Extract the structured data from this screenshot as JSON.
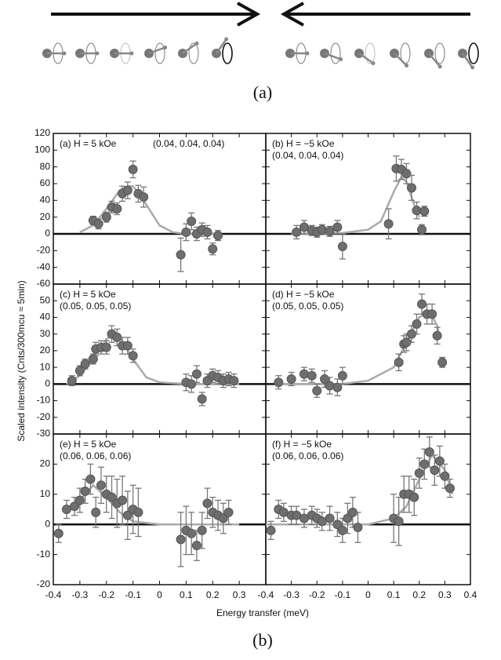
{
  "figure": {
    "caption_a": "(a)",
    "caption_b": "(b)",
    "xlabel": "Energy transfer (meV)",
    "ylabel": "Scaled intensity (Cnts/300mcu ≈ 5min)"
  },
  "chart_data": [
    {
      "type": "scatter",
      "label": "(a) H = 5 kOe",
      "subtitle": "(0.04, 0.04, 0.04)",
      "x": [
        -0.25,
        -0.23,
        -0.2,
        -0.18,
        -0.16,
        -0.14,
        -0.12,
        -0.1,
        -0.08,
        -0.06,
        0.08,
        0.1,
        0.12,
        0.14,
        0.16,
        0.18,
        0.2,
        0.22
      ],
      "values": [
        16,
        12,
        20,
        32,
        30,
        48,
        52,
        77,
        48,
        44,
        -25,
        2,
        15,
        0,
        5,
        2,
        -18,
        -2
      ],
      "errors": [
        5,
        6,
        6,
        7,
        7,
        9,
        10,
        10,
        10,
        12,
        20,
        10,
        10,
        8,
        8,
        8,
        7,
        6
      ],
      "fit": {
        "x": [
          -0.3,
          -0.25,
          -0.2,
          -0.15,
          -0.12,
          -0.1,
          -0.07,
          -0.05,
          0,
          0.05,
          0.1,
          0.15,
          0.2,
          0.22
        ],
        "values": [
          2,
          10,
          30,
          52,
          57,
          57,
          45,
          35,
          10,
          2,
          0,
          0,
          0,
          0
        ]
      },
      "xlim": [
        -0.4,
        0.4
      ],
      "xticks": [
        -0.4,
        -0.3,
        -0.2,
        -0.1,
        0,
        0.1,
        0.2,
        0.3
      ],
      "ylim": [
        -60,
        120
      ],
      "yticks": [
        -60,
        -40,
        -20,
        0,
        20,
        40,
        60,
        80,
        100,
        120
      ]
    },
    {
      "type": "scatter",
      "label": "(b) H = −5 kOe",
      "subtitle": "(0.04, 0.04, 0.04)",
      "x": [
        -0.28,
        -0.25,
        -0.22,
        -0.2,
        -0.18,
        -0.15,
        -0.12,
        -0.1,
        0.08,
        0.11,
        0.13,
        0.15,
        0.17,
        0.19,
        0.21,
        0.22
      ],
      "values": [
        2,
        8,
        4,
        2,
        5,
        3,
        8,
        -15,
        12,
        78,
        77,
        72,
        55,
        28,
        5,
        27
      ],
      "errors": [
        8,
        8,
        6,
        6,
        6,
        6,
        8,
        15,
        18,
        15,
        12,
        12,
        15,
        10,
        6,
        6
      ],
      "fit": {
        "x": [
          -0.3,
          -0.2,
          -0.1,
          0,
          0.05,
          0.1,
          0.13,
          0.15,
          0.18,
          0.2
        ],
        "values": [
          0,
          0,
          1,
          5,
          15,
          50,
          68,
          62,
          35,
          20
        ]
      },
      "xlim": [
        -0.4,
        0.4
      ],
      "xticks": [
        -0.4,
        -0.3,
        -0.2,
        -0.1,
        0,
        0.1,
        0.2,
        0.3,
        0.4
      ],
      "ylim": [
        -60,
        120
      ],
      "yticks": [
        -60,
        -40,
        -20,
        0,
        20,
        40,
        60,
        80,
        100,
        120
      ]
    },
    {
      "type": "scatter",
      "label": "(c) H = 5 kOe",
      "subtitle": "(0.05, 0.05, 0.05)",
      "x": [
        -0.33,
        -0.3,
        -0.28,
        -0.25,
        -0.24,
        -0.22,
        -0.2,
        -0.18,
        -0.16,
        -0.14,
        -0.12,
        -0.1,
        0.1,
        0.12,
        0.14,
        0.16,
        0.18,
        0.2,
        0.22,
        0.24,
        0.26,
        0.28
      ],
      "values": [
        2,
        8,
        12,
        15,
        21,
        22,
        22,
        30,
        28,
        23,
        23,
        17,
        1,
        0,
        6,
        -9,
        2,
        5,
        4,
        2,
        3,
        2
      ],
      "errors": [
        3,
        3,
        3,
        3,
        4,
        4,
        4,
        5,
        5,
        5,
        5,
        4,
        5,
        5,
        5,
        4,
        4,
        4,
        4,
        4,
        4,
        4
      ],
      "fit": {
        "x": [
          -0.35,
          -0.3,
          -0.25,
          -0.2,
          -0.17,
          -0.15,
          -0.1,
          -0.05,
          0,
          0.1,
          0.3
        ],
        "values": [
          0,
          5,
          15,
          27,
          30,
          28,
          15,
          4,
          1,
          0,
          0
        ]
      },
      "xlim": [
        -0.4,
        0.4
      ],
      "xticks": [
        -0.4,
        -0.3,
        -0.2,
        -0.1,
        0,
        0.1,
        0.2,
        0.3
      ],
      "ylim": [
        -30,
        60
      ],
      "yticks": [
        -30,
        -20,
        -10,
        0,
        10,
        20,
        30,
        40,
        50
      ]
    },
    {
      "type": "scatter",
      "label": "(d) H = −5 kOe",
      "subtitle": "(0.05, 0.05, 0.05)",
      "x": [
        -0.35,
        -0.3,
        -0.25,
        -0.22,
        -0.2,
        -0.17,
        -0.15,
        -0.12,
        -0.1,
        0.12,
        0.14,
        0.15,
        0.17,
        0.19,
        0.21,
        0.23,
        0.25,
        0.27,
        0.29
      ],
      "values": [
        1,
        3,
        6,
        5,
        -4,
        3,
        -1,
        -2,
        5,
        13,
        24,
        25,
        30,
        36,
        48,
        42,
        42,
        29,
        13
      ],
      "errors": [
        4,
        4,
        4,
        4,
        4,
        5,
        5,
        5,
        5,
        5,
        5,
        5,
        5,
        6,
        6,
        6,
        6,
        5,
        3
      ],
      "fit": {
        "x": [
          -0.35,
          -0.1,
          0,
          0.1,
          0.15,
          0.2,
          0.24,
          0.27,
          0.28
        ],
        "values": [
          0,
          0,
          2,
          10,
          25,
          40,
          44,
          35,
          28
        ]
      },
      "xlim": [
        -0.4,
        0.4
      ],
      "xticks": [
        -0.4,
        -0.3,
        -0.2,
        -0.1,
        0,
        0.1,
        0.2,
        0.3,
        0.4
      ],
      "ylim": [
        -30,
        60
      ],
      "yticks": [
        -30,
        -20,
        -10,
        0,
        10,
        20,
        30,
        40,
        50
      ]
    },
    {
      "type": "scatter",
      "label": "(e) H = 5 kOe",
      "subtitle": "(0.06, 0.06, 0.06)",
      "x": [
        -0.38,
        -0.35,
        -0.32,
        -0.3,
        -0.28,
        -0.26,
        -0.24,
        -0.22,
        -0.2,
        -0.18,
        -0.16,
        -0.14,
        -0.12,
        -0.1,
        -0.08,
        0.08,
        0.1,
        0.12,
        0.14,
        0.16,
        0.18,
        0.2,
        0.22,
        0.24,
        0.26
      ],
      "values": [
        -3,
        5,
        6,
        8,
        11,
        15,
        4,
        13,
        10,
        9,
        7,
        8,
        3,
        5,
        4,
        -5,
        -2,
        -3,
        -7,
        -2,
        7,
        4,
        3,
        2,
        4
      ],
      "errors": [
        3,
        3,
        3,
        4,
        4,
        5,
        5,
        6,
        6,
        7,
        8,
        8,
        8,
        8,
        8,
        9,
        8,
        7,
        5,
        6,
        5,
        5,
        5,
        5,
        4
      ],
      "fit": {
        "x": [
          -0.35,
          -0.3,
          -0.25,
          -0.2,
          -0.15,
          -0.1,
          0,
          0.3
        ],
        "values": [
          4,
          8,
          13,
          9,
          4,
          1,
          0,
          0
        ]
      },
      "xlim": [
        -0.4,
        0.4
      ],
      "xticks": [
        -0.4,
        -0.3,
        -0.2,
        -0.1,
        0,
        0.1,
        0.2,
        0.3
      ],
      "ylim": [
        -20,
        30
      ],
      "yticks": [
        -20,
        -10,
        0,
        10,
        20
      ]
    },
    {
      "type": "scatter",
      "label": "(f) H = −5 kOe",
      "subtitle": "(0.06, 0.06, 0.06)",
      "x": [
        -0.38,
        -0.35,
        -0.33,
        -0.3,
        -0.28,
        -0.25,
        -0.22,
        -0.2,
        -0.18,
        -0.15,
        -0.12,
        -0.1,
        -0.08,
        -0.06,
        -0.04,
        0.1,
        0.12,
        0.14,
        0.16,
        0.18,
        0.2,
        0.22,
        0.24,
        0.26,
        0.28,
        0.3,
        0.32
      ],
      "values": [
        -2,
        5,
        4,
        3,
        3,
        2,
        3,
        2,
        1,
        2,
        0,
        -2,
        2,
        4,
        -1,
        2,
        1,
        10,
        10,
        9,
        17,
        20,
        24,
        18,
        21,
        16,
        12
      ],
      "errors": [
        3,
        3,
        3,
        3,
        3,
        3,
        3,
        3,
        3,
        4,
        4,
        4,
        5,
        5,
        5,
        8,
        8,
        6,
        6,
        6,
        5,
        5,
        5,
        5,
        5,
        4,
        3
      ],
      "fit": {
        "x": [
          -0.4,
          0,
          0.1,
          0.15,
          0.2,
          0.25,
          0.3,
          0.33
        ],
        "values": [
          0,
          0,
          2,
          6,
          15,
          23,
          18,
          10
        ]
      },
      "xlim": [
        -0.4,
        0.4
      ],
      "xticks": [
        -0.4,
        -0.3,
        -0.2,
        -0.1,
        0,
        0.1,
        0.2,
        0.3,
        0.4
      ],
      "ylim": [
        -20,
        30
      ],
      "yticks": [
        -20,
        -10,
        0,
        10,
        20
      ]
    }
  ]
}
